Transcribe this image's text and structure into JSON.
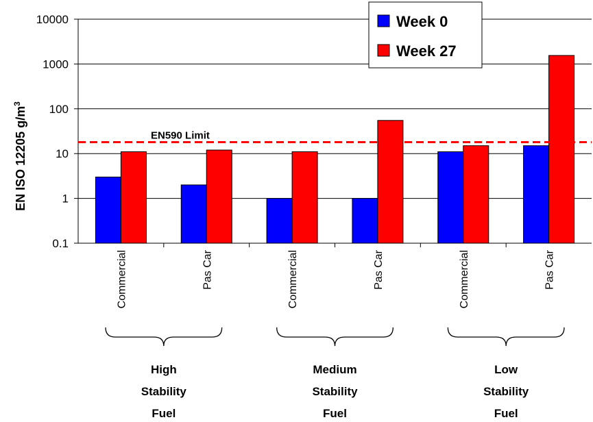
{
  "chart_data": {
    "type": "bar",
    "ylabel": "EN ISO 12205 g/m",
    "ylabel_superscript": "3",
    "y_scale": "log",
    "ylim": [
      0.1,
      10000
    ],
    "y_ticks": [
      "0.1",
      "1",
      "10",
      "100",
      "1000",
      "10000"
    ],
    "grid": "horizontal",
    "legend_position": "top-right",
    "categories": [
      "Commercial",
      "Pas Car",
      "Commercial",
      "Pas Car",
      "Commercial",
      "Pas Car"
    ],
    "groups": [
      {
        "line1": "High",
        "line2": "Stability",
        "line3": "Fuel"
      },
      {
        "line1": "Medium",
        "line2": "Stability",
        "line3": "Fuel"
      },
      {
        "line1": "Low",
        "line2": "Stability",
        "line3": "Fuel"
      }
    ],
    "series": [
      {
        "name": "Week 0",
        "color": "#0000ff",
        "values": [
          3,
          2,
          1,
          1,
          11,
          15
        ]
      },
      {
        "name": "Week 27",
        "color": "#ff0000",
        "values": [
          11,
          12,
          11,
          55,
          15,
          1550
        ]
      }
    ],
    "limit_line": {
      "label": "EN590 Limit",
      "value": 18,
      "color": "#ff0000"
    }
  }
}
